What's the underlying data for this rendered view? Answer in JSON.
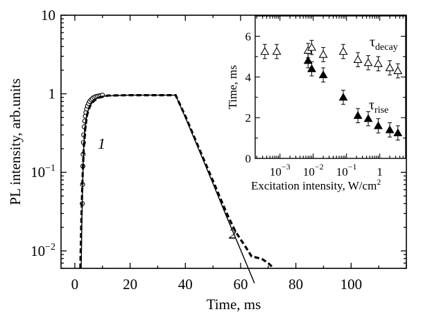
{
  "chart_data": [
    {
      "type": "line",
      "xlabel": "Time, ms",
      "ylabel": "PL intensity, arb.units",
      "xlim": [
        -5,
        120
      ],
      "ylim": [
        0.006,
        10
      ],
      "yscale": "log",
      "xticks": [
        0,
        20,
        40,
        60,
        80,
        100
      ],
      "xticklabels": [
        "0",
        "20",
        "40",
        "60",
        "80",
        "100"
      ],
      "yticks": [
        0.01,
        0.1,
        1,
        10
      ],
      "yticklabels": [
        {
          "base": "10",
          "exp": "−2"
        },
        {
          "base": "10",
          "exp": "−1"
        },
        {
          "base": "1",
          "exp": ""
        },
        {
          "base": "10",
          "exp": ""
        }
      ],
      "curve_labels": [
        "1",
        "2"
      ],
      "series": [
        {
          "label": "1",
          "style": "open-circles",
          "x": [
            2.7,
            2.8,
            2.9,
            3.0,
            3.1,
            3.2,
            3.4,
            3.6,
            3.8,
            4.0,
            4.3,
            4.6,
            5.0,
            5.4,
            5.9,
            6.4,
            7.0,
            7.6,
            8.2,
            8.8,
            9.4,
            10.0
          ],
          "y": [
            0.04,
            0.07,
            0.12,
            0.17,
            0.24,
            0.3,
            0.38,
            0.45,
            0.52,
            0.58,
            0.64,
            0.7,
            0.75,
            0.8,
            0.84,
            0.87,
            0.9,
            0.92,
            0.93,
            0.94,
            0.95,
            0.96
          ]
        },
        {
          "label": "2",
          "style": "solid",
          "x": [
            2.3,
            2.5,
            2.8,
            3.2,
            3.6,
            4.2,
            5,
            6,
            8,
            10,
            15,
            20,
            30,
            36.5,
            40,
            45,
            50,
            55,
            60,
            65
          ],
          "y": [
            0.006,
            0.02,
            0.07,
            0.2,
            0.35,
            0.5,
            0.65,
            0.75,
            0.88,
            0.93,
            0.95,
            0.96,
            0.96,
            0.96,
            0.5,
            0.19,
            0.072,
            0.027,
            0.0103,
            0.0039
          ]
        },
        {
          "label": "",
          "style": "dashed",
          "x": [
            2.0,
            2.3,
            2.7,
            3.2,
            3.8,
            4.5,
            5.5,
            7,
            9,
            12,
            20,
            30,
            36.5,
            40,
            45,
            50,
            55,
            58,
            60,
            62,
            64,
            66,
            68,
            70,
            72
          ],
          "y": [
            0.006,
            0.02,
            0.07,
            0.2,
            0.38,
            0.55,
            0.7,
            0.82,
            0.9,
            0.95,
            0.96,
            0.96,
            0.96,
            0.52,
            0.2,
            0.078,
            0.03,
            0.018,
            0.014,
            0.011,
            0.0085,
            0.0082,
            0.0078,
            0.007,
            0.006
          ]
        }
      ]
    },
    {
      "type": "scatter",
      "xlabel": "Excitation intensity, W/cm",
      "xlabel_sup": "2",
      "ylabel": "Time, ms",
      "xscale": "log",
      "xlim": [
        0.00018,
        6
      ],
      "ylim": [
        0,
        7
      ],
      "xticks": [
        0.001,
        0.01,
        0.1,
        1
      ],
      "xticklabels": [
        {
          "base": "10",
          "exp": "−3"
        },
        {
          "base": "10",
          "exp": "−2"
        },
        {
          "base": "10",
          "exp": "−1"
        },
        {
          "base": "1",
          "exp": ""
        }
      ],
      "yticks": [
        0,
        2,
        4,
        6
      ],
      "yticklabels": [
        "0",
        "2",
        "4",
        "6"
      ],
      "series": [
        {
          "name": "τ",
          "name_sub": "decay",
          "marker": "open-triangle",
          "x": [
            0.00035,
            0.0008,
            0.007,
            0.009,
            0.02,
            0.08,
            0.22,
            0.45,
            0.9,
            2,
            3.5
          ],
          "y": [
            5.25,
            5.25,
            5.3,
            5.45,
            5.1,
            5.25,
            4.85,
            4.7,
            4.65,
            4.45,
            4.3
          ],
          "err": [
            0.35,
            0.35,
            0.35,
            0.35,
            0.35,
            0.35,
            0.35,
            0.35,
            0.35,
            0.35,
            0.35
          ]
        },
        {
          "name": "τ",
          "name_sub": "rise",
          "marker": "filled-triangle",
          "x": [
            0.007,
            0.009,
            0.02,
            0.08,
            0.22,
            0.45,
            0.9,
            2,
            3.5
          ],
          "y": [
            4.8,
            4.4,
            4.1,
            3.0,
            2.1,
            1.95,
            1.6,
            1.4,
            1.25
          ],
          "err": [
            0.35,
            0.35,
            0.35,
            0.35,
            0.35,
            0.35,
            0.35,
            0.35,
            0.35
          ]
        }
      ]
    }
  ]
}
